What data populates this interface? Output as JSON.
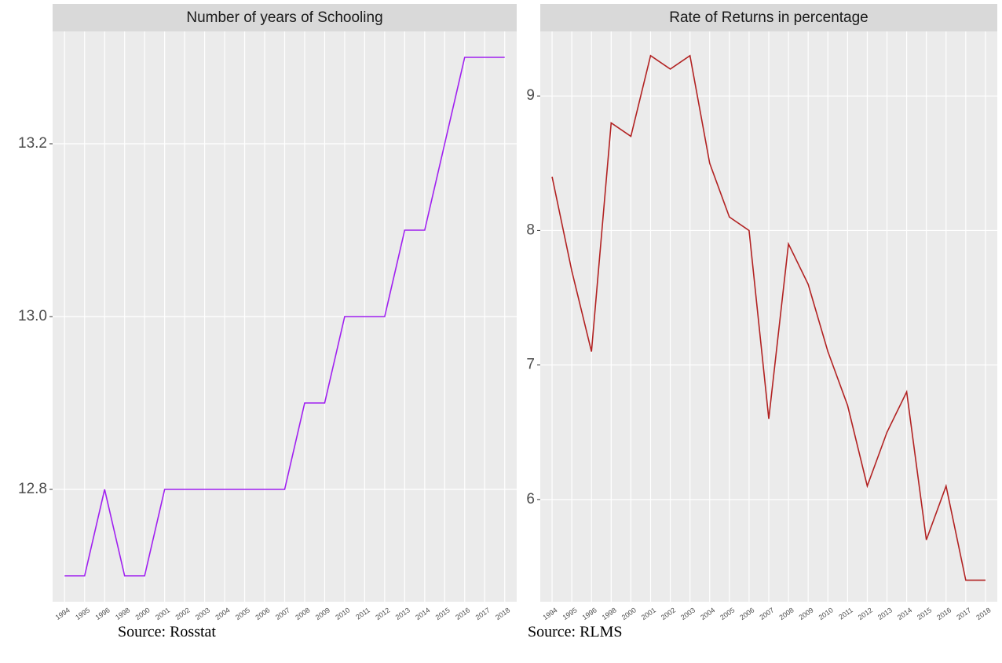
{
  "chart_data": [
    {
      "type": "line",
      "title": "Number of years of Schooling",
      "source": "Source: Rosstat",
      "categories": [
        "1994",
        "1995",
        "1996",
        "1998",
        "2000",
        "2001",
        "2002",
        "2003",
        "2004",
        "2005",
        "2006",
        "2007",
        "2008",
        "2009",
        "2010",
        "2011",
        "2012",
        "2013",
        "2014",
        "2015",
        "2016",
        "2017",
        "2018"
      ],
      "values": [
        12.7,
        12.7,
        12.8,
        12.7,
        12.7,
        12.8,
        12.8,
        12.8,
        12.8,
        12.8,
        12.8,
        12.8,
        12.9,
        12.9,
        13.0,
        13.0,
        13.0,
        13.1,
        13.1,
        13.2,
        13.3,
        13.3,
        13.3
      ],
      "color": "#a020f0",
      "ylim": [
        12.67,
        13.33
      ],
      "yticks": [
        12.8,
        {
          "value": 13.0,
          "label": "13.0"
        },
        13.2
      ],
      "grid": true
    },
    {
      "type": "line",
      "title": "Rate of Returns in percentage",
      "source": "Source: RLMS",
      "categories": [
        "1994",
        "1995",
        "1996",
        "1998",
        "2000",
        "2001",
        "2002",
        "2003",
        "2004",
        "2005",
        "2006",
        "2007",
        "2008",
        "2009",
        "2010",
        "2011",
        "2012",
        "2013",
        "2014",
        "2015",
        "2016",
        "2017",
        "2018"
      ],
      "values": [
        8.4,
        7.7,
        7.1,
        8.8,
        8.7,
        9.3,
        9.2,
        9.3,
        8.5,
        8.1,
        8.0,
        6.6,
        7.9,
        7.6,
        7.1,
        6.7,
        6.1,
        6.5,
        6.8,
        5.7,
        6.1,
        5.4,
        5.4
      ],
      "color": "#b22222",
      "ylim": [
        5.24,
        9.48
      ],
      "yticks": [
        6,
        7,
        8,
        9
      ],
      "grid": true
    }
  ]
}
